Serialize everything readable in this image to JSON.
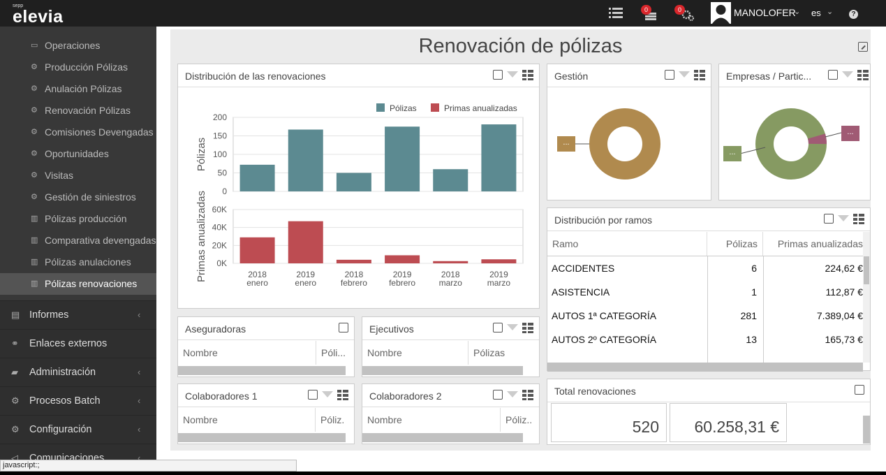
{
  "app": {
    "brand_small": "sepp",
    "brand": "elevia",
    "user": "MANOLOFER",
    "lang": "es",
    "badge1": "0",
    "badge2": "0",
    "help": "?"
  },
  "sidebar": {
    "items": [
      {
        "label": "Operaciones",
        "icon": "money-icon"
      },
      {
        "label": "Producción Pólizas",
        "icon": "gears-icon"
      },
      {
        "label": "Anulación Pólizas",
        "icon": "gears-icon"
      },
      {
        "label": "Renovación Pólizas",
        "icon": "gears-icon"
      },
      {
        "label": "Comisiones Devengadas",
        "icon": "gears-icon"
      },
      {
        "label": "Oportunidades",
        "icon": "gears-icon"
      },
      {
        "label": "Visitas",
        "icon": "gears-icon"
      },
      {
        "label": "Gestión de siniestros",
        "icon": "gears-icon"
      },
      {
        "label": "Pólizas producción",
        "icon": "bar-chart-icon"
      },
      {
        "label": "Comparativa devengadas",
        "icon": "bar-chart-icon"
      },
      {
        "label": "Pólizas anulaciones",
        "icon": "bar-chart-icon"
      },
      {
        "label": "Pólizas renovaciones",
        "icon": "bar-chart-icon"
      }
    ],
    "sections": [
      {
        "label": "Informes",
        "icon": "document-icon",
        "arrow": "‹"
      },
      {
        "label": "Enlaces externos",
        "icon": "link-icon",
        "arrow": ""
      },
      {
        "label": "Administración",
        "icon": "book-icon",
        "arrow": "‹"
      },
      {
        "label": "Procesos Batch",
        "icon": "gears-icon",
        "arrow": "‹"
      },
      {
        "label": "Configuración",
        "icon": "gear-icon",
        "arrow": "‹"
      },
      {
        "label": "Comunicaciones",
        "icon": "bullhorn-icon",
        "arrow": "‹"
      }
    ]
  },
  "page": {
    "title": "Renovación de pólizas"
  },
  "panels": {
    "distribucion": "Distribución de las renovaciones",
    "gestion": "Gestión",
    "empresas": "Empresas / Partic...",
    "ramos": "Distribución por ramos",
    "aseguradoras": "Aseguradoras",
    "ejecutivos": "Ejecutivos",
    "colaboradores1": "Colaboradores 1",
    "colaboradores2": "Colaboradores 2",
    "total": "Total renovaciones"
  },
  "small_tables": {
    "nombre": "Nombre",
    "polizas_a": "Póli...",
    "polizas_b": "Pólizas",
    "polizas_c": "Póliz.",
    "polizas_d": "Póliz.."
  },
  "ramos": {
    "headers": [
      "Ramo",
      "Pólizas",
      "Primas anualizadas"
    ],
    "rows": [
      [
        "ACCIDENTES",
        "6",
        "224,62 €"
      ],
      [
        "ASISTENCIA",
        "1",
        "112,87 €"
      ],
      [
        "AUTOS 1ª CATEGORÍA",
        "281",
        "7.389,04 €"
      ],
      [
        "AUTOS 2º CATEGORÍA",
        "13",
        "165,73 €"
      ]
    ]
  },
  "totals": {
    "polizas": "520",
    "primas": "60.258,31 €"
  },
  "donut": {
    "label": "...",
    "gestion_color": "#b08a4e",
    "empresas_main": "#869a62",
    "empresas_minor": "#a05a74"
  },
  "chart_data": {
    "type": "bar",
    "categories": [
      [
        "2018",
        "enero"
      ],
      [
        "2019",
        "enero"
      ],
      [
        "2018",
        "febrero"
      ],
      [
        "2019",
        "febrero"
      ],
      [
        "2018",
        "marzo"
      ],
      [
        "2019",
        "marzo"
      ]
    ],
    "series": [
      {
        "name": "Pólizas",
        "values": [
          72,
          167,
          50,
          175,
          60,
          181
        ],
        "color": "#5c8a91",
        "ylabel": "Pólizas",
        "ylim": [
          0,
          200
        ],
        "ticks": [
          "0",
          "50",
          "100",
          "150",
          "200"
        ]
      },
      {
        "name": "Primas anualizadas",
        "values": [
          29000,
          47000,
          4000,
          9000,
          2500,
          4500
        ],
        "color": "#bd4c52",
        "ylabel": "Primas anualizadas",
        "ylim": [
          0,
          60000
        ],
        "ticks": [
          "0K",
          "20K",
          "40K",
          "60K"
        ]
      }
    ],
    "legend": "top-right",
    "grid": true
  },
  "status": "javascript:;"
}
